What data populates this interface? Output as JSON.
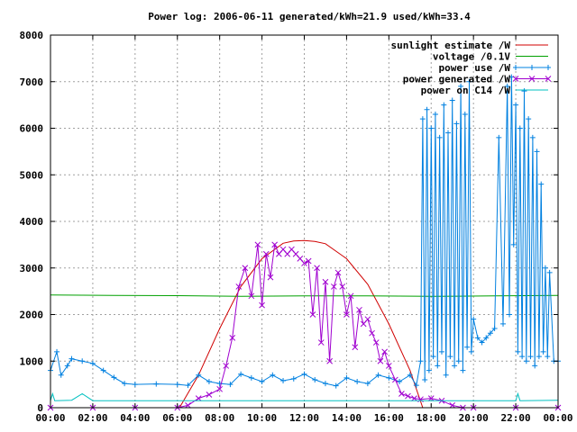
{
  "chart_data": {
    "type": "line",
    "title": "Power log: 2006-06-11 generated/kWh=21.9 used/kWh=33.4",
    "xlabel": "",
    "ylabel": "",
    "xlim": [
      "00:00",
      "24:00"
    ],
    "ylim": [
      0,
      8000
    ],
    "grid": true,
    "legend_position": "top-right",
    "x_ticks": [
      "00:00",
      "02:00",
      "04:00",
      "06:00",
      "08:00",
      "10:00",
      "12:00",
      "14:00",
      "16:00",
      "18:00",
      "20:00",
      "22:00",
      "00:00"
    ],
    "y_ticks": [
      "0",
      "1000",
      "2000",
      "3000",
      "4000",
      "5000",
      "6000",
      "7000",
      "8000"
    ],
    "series": [
      {
        "name": "sunlight estimate /W",
        "color": "#d00000",
        "style": "line",
        "x_hours": [
          6.1,
          7,
          8,
          9,
          10,
          11,
          11.5,
          12,
          12.5,
          13,
          14,
          15,
          16,
          17,
          17.6
        ],
        "values": [
          0,
          700,
          1700,
          2600,
          3200,
          3530,
          3580,
          3590,
          3570,
          3520,
          3200,
          2650,
          1800,
          800,
          0
        ]
      },
      {
        "name": "voltage /0.1V",
        "color": "#00a000",
        "style": "line",
        "x_hours": [
          0,
          3,
          6,
          9,
          12,
          15,
          18,
          21,
          24
        ],
        "values": [
          2420,
          2410,
          2405,
          2390,
          2400,
          2400,
          2390,
          2400,
          2410
        ]
      },
      {
        "name": "power use /W",
        "color": "#0080e0",
        "style": "linespoints-plus",
        "x_hours": [
          0,
          0.3,
          0.5,
          0.8,
          1,
          1.5,
          2,
          2.5,
          3,
          3.5,
          4,
          5,
          6,
          6.5,
          7,
          7.5,
          8,
          8.5,
          9,
          9.5,
          10,
          10.5,
          11,
          11.5,
          12,
          12.5,
          13,
          13.5,
          14,
          14.5,
          15,
          15.5,
          16,
          16.5,
          17,
          17.3,
          17.5,
          17.6,
          17.7,
          17.8,
          17.9,
          18,
          18.1,
          18.2,
          18.3,
          18.4,
          18.5,
          18.6,
          18.7,
          18.8,
          18.9,
          19,
          19.1,
          19.2,
          19.3,
          19.4,
          19.5,
          19.6,
          19.7,
          19.8,
          19.9,
          20,
          20.2,
          20.4,
          20.6,
          20.8,
          21,
          21.2,
          21.4,
          21.6,
          21.7,
          21.8,
          21.9,
          22,
          22.1,
          22.2,
          22.3,
          22.4,
          22.5,
          22.6,
          22.7,
          22.8,
          22.9,
          23,
          23.1,
          23.2,
          23.3,
          23.4,
          23.5,
          23.6,
          23.8,
          24
        ],
        "values": [
          800,
          1200,
          700,
          900,
          1050,
          1000,
          950,
          800,
          650,
          520,
          500,
          510,
          500,
          480,
          700,
          560,
          520,
          500,
          720,
          640,
          560,
          700,
          580,
          620,
          720,
          600,
          520,
          470,
          640,
          560,
          520,
          700,
          640,
          560,
          700,
          480,
          1000,
          6200,
          600,
          6400,
          800,
          6000,
          1100,
          6300,
          900,
          5800,
          1200,
          6500,
          700,
          5900,
          1100,
          6600,
          900,
          6100,
          1000,
          6900,
          800,
          6300,
          1300,
          7000,
          1200,
          1900,
          1500,
          1400,
          1500,
          1600,
          1700,
          5800,
          1800,
          6900,
          2000,
          7100,
          3500,
          6500,
          1200,
          6000,
          1100,
          6800,
          1000,
          6200,
          1100,
          5800,
          900,
          5500,
          1100,
          4800,
          1200,
          3000,
          1100,
          2900,
          1000,
          1000
        ]
      },
      {
        "name": "power generated /W",
        "color": "#a000d0",
        "style": "linespoints-x",
        "x_hours": [
          0,
          2,
          4,
          6,
          6.5,
          7,
          7.5,
          8,
          8.3,
          8.6,
          8.9,
          9.2,
          9.5,
          9.8,
          10,
          10.2,
          10.4,
          10.6,
          10.8,
          11,
          11.2,
          11.4,
          11.6,
          11.8,
          12,
          12.2,
          12.4,
          12.6,
          12.8,
          13,
          13.2,
          13.4,
          13.6,
          13.8,
          14,
          14.2,
          14.4,
          14.6,
          14.8,
          15,
          15.2,
          15.4,
          15.6,
          15.8,
          16,
          16.3,
          16.6,
          16.9,
          17.2,
          17.5,
          18,
          18.5,
          19,
          19.5,
          20,
          22,
          24
        ],
        "values": [
          0,
          0,
          0,
          0,
          50,
          200,
          280,
          400,
          900,
          1500,
          2600,
          3000,
          2400,
          3500,
          2200,
          3300,
          2800,
          3500,
          3300,
          3400,
          3300,
          3400,
          3300,
          3200,
          3100,
          3150,
          2000,
          3000,
          1400,
          2700,
          1000,
          2600,
          2900,
          2600,
          2000,
          2400,
          1300,
          2100,
          1800,
          1900,
          1600,
          1400,
          1000,
          1200,
          900,
          600,
          300,
          250,
          200,
          180,
          200,
          150,
          50,
          0,
          0,
          0,
          0
        ]
      },
      {
        "name": "power on C14 /W",
        "color": "#00c0c0",
        "style": "line",
        "x_hours": [
          0,
          0.1,
          0.2,
          1,
          1.5,
          2,
          4,
          6,
          8,
          10,
          12,
          14,
          16,
          18,
          20,
          21,
          22,
          22.1,
          22.2,
          24
        ],
        "values": [
          150,
          300,
          150,
          160,
          300,
          150,
          150,
          150,
          150,
          150,
          150,
          150,
          150,
          150,
          150,
          150,
          150,
          300,
          150,
          160
        ]
      }
    ]
  }
}
